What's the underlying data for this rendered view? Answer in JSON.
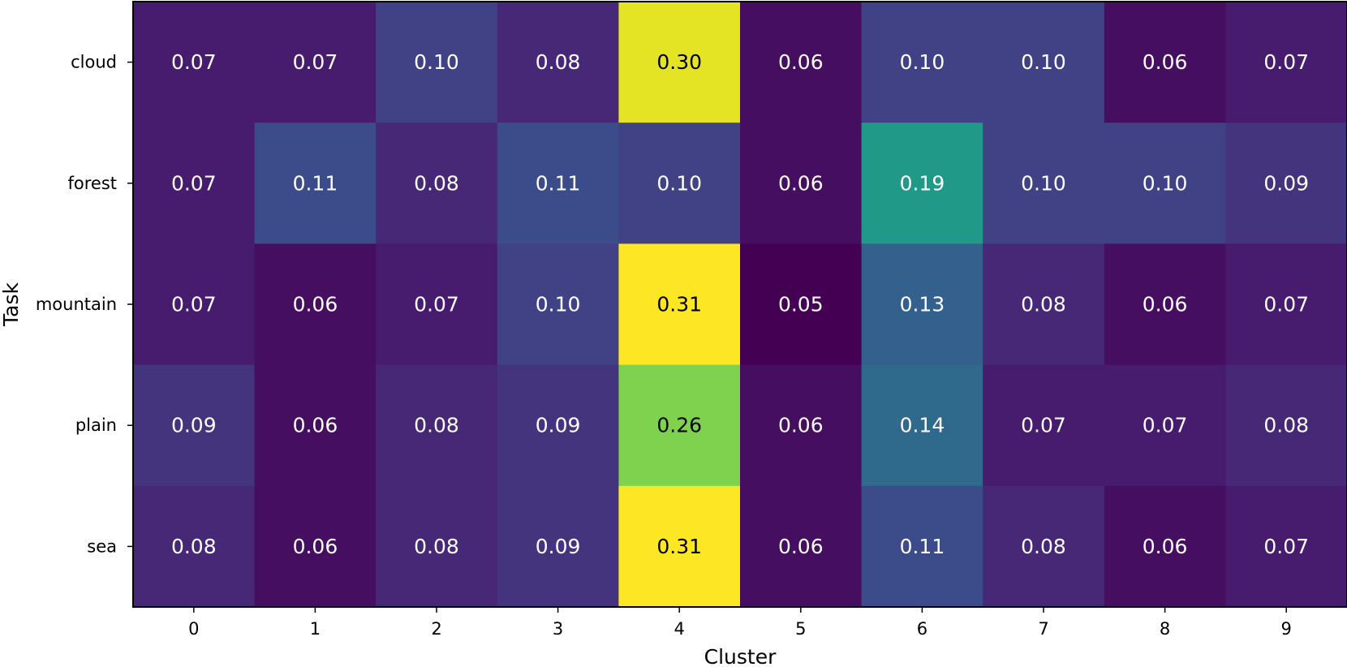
{
  "chart_data": {
    "type": "heatmap",
    "title": "",
    "xlabel": "Cluster",
    "ylabel": "Task",
    "x_categories": [
      "0",
      "1",
      "2",
      "3",
      "4",
      "5",
      "6",
      "7",
      "8",
      "9"
    ],
    "y_categories": [
      "cloud",
      "forest",
      "mountain",
      "plain",
      "sea"
    ],
    "values": [
      [
        0.07,
        0.07,
        0.1,
        0.08,
        0.3,
        0.06,
        0.1,
        0.1,
        0.06,
        0.07
      ],
      [
        0.07,
        0.11,
        0.08,
        0.11,
        0.1,
        0.06,
        0.19,
        0.1,
        0.1,
        0.09
      ],
      [
        0.07,
        0.06,
        0.07,
        0.1,
        0.31,
        0.05,
        0.13,
        0.08,
        0.06,
        0.07
      ],
      [
        0.09,
        0.06,
        0.08,
        0.09,
        0.26,
        0.06,
        0.14,
        0.07,
        0.07,
        0.08
      ],
      [
        0.08,
        0.06,
        0.08,
        0.09,
        0.31,
        0.06,
        0.11,
        0.08,
        0.06,
        0.07
      ]
    ],
    "cell_labels": [
      [
        "0.07",
        "0.07",
        "0.10",
        "0.08",
        "0.30",
        "0.06",
        "0.10",
        "0.10",
        "0.06",
        "0.07"
      ],
      [
        "0.07",
        "0.11",
        "0.08",
        "0.11",
        "0.10",
        "0.06",
        "0.19",
        "0.10",
        "0.10",
        "0.09"
      ],
      [
        "0.07",
        "0.06",
        "0.07",
        "0.10",
        "0.31",
        "0.05",
        "0.13",
        "0.08",
        "0.06",
        "0.07"
      ],
      [
        "0.09",
        "0.06",
        "0.08",
        "0.09",
        "0.26",
        "0.06",
        "0.14",
        "0.07",
        "0.07",
        "0.08"
      ],
      [
        "0.08",
        "0.06",
        "0.08",
        "0.09",
        "0.31",
        "0.06",
        "0.11",
        "0.08",
        "0.06",
        "0.07"
      ]
    ],
    "colormap": "viridis",
    "value_range": [
      0.05,
      0.31
    ],
    "grid": false,
    "legend": "none"
  }
}
